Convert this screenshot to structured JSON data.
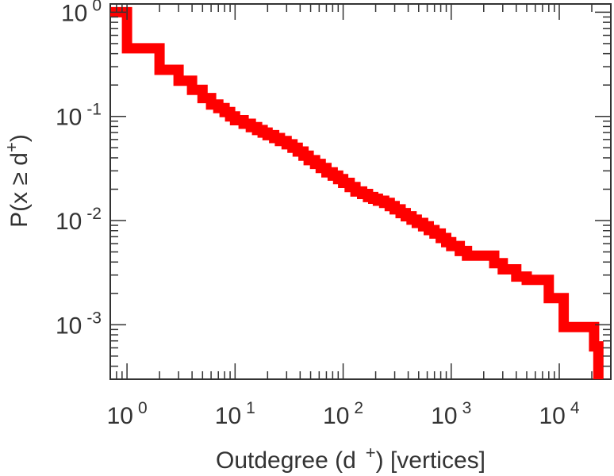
{
  "chart_data": {
    "type": "line",
    "step": true,
    "x_scale": "log",
    "y_scale": "log",
    "xlabel": {
      "pre": "Outdegree (d",
      "sup": "+",
      "post": ") [vertices]"
    },
    "ylabel": {
      "pre": "P(x ≥ d",
      "sup": "+",
      "post": ")"
    },
    "xlim": [
      0.7,
      30000
    ],
    "ylim": [
      0.0003,
      1.2
    ],
    "x_ticks": [
      {
        "base": "10",
        "exp": "0",
        "value": 1
      },
      {
        "base": "10",
        "exp": "1",
        "value": 10
      },
      {
        "base": "10",
        "exp": "2",
        "value": 100
      },
      {
        "base": "10",
        "exp": "3",
        "value": 1000
      },
      {
        "base": "10",
        "exp": "4",
        "value": 10000
      }
    ],
    "y_ticks": [
      {
        "base": "10",
        "exp": "0",
        "value": 1
      },
      {
        "base": "10",
        "exp": "-1",
        "value": 0.1
      },
      {
        "base": "10",
        "exp": "-2",
        "value": 0.01
      },
      {
        "base": "10",
        "exp": "-3",
        "value": 0.001
      }
    ],
    "grid": false,
    "series": [
      {
        "color": "#ff0000",
        "x": [
          0.7,
          1,
          2,
          3,
          4,
          5,
          6,
          7,
          8,
          9,
          10,
          12,
          14,
          16,
          18,
          20,
          23,
          26,
          30,
          34,
          38,
          43,
          48,
          55,
          62,
          70,
          80,
          90,
          100,
          115,
          130,
          150,
          170,
          190,
          210,
          240,
          270,
          300,
          340,
          380,
          430,
          480,
          550,
          620,
          700,
          800,
          900,
          1000,
          1200,
          1400,
          1700,
          2000,
          2500,
          3000,
          4000,
          5000,
          6000,
          7000,
          8000,
          11000,
          14000,
          20000,
          21000,
          23000
        ],
        "y": [
          1.0,
          0.45,
          0.28,
          0.22,
          0.18,
          0.15,
          0.13,
          0.12,
          0.11,
          0.1,
          0.092,
          0.085,
          0.079,
          0.074,
          0.07,
          0.066,
          0.062,
          0.058,
          0.054,
          0.05,
          0.046,
          0.042,
          0.038,
          0.035,
          0.032,
          0.029,
          0.027,
          0.025,
          0.023,
          0.021,
          0.019,
          0.018,
          0.0168,
          0.0162,
          0.0155,
          0.0148,
          0.0138,
          0.0128,
          0.0118,
          0.011,
          0.0102,
          0.0095,
          0.0088,
          0.0081,
          0.0075,
          0.0068,
          0.0062,
          0.0057,
          0.0051,
          0.0046,
          0.0046,
          0.0046,
          0.0039,
          0.0034,
          0.0029,
          0.0027,
          0.0027,
          0.0027,
          0.0018,
          0.00095,
          0.00095,
          0.00095,
          0.00062,
          0.0003
        ]
      }
    ]
  }
}
